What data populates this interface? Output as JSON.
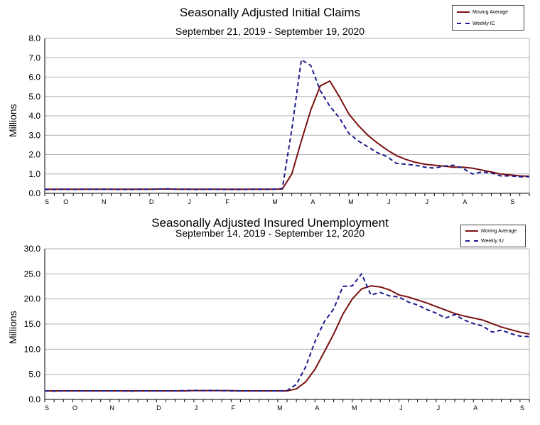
{
  "colors": {
    "moving_average": "#7a1010",
    "weekly": "#1a1a8c",
    "grid": "#b0b0b0",
    "axis": "#000000"
  },
  "chart_data": [
    {
      "type": "line",
      "title": "Seasonally Adjusted Initial Claims",
      "subtitle": "September 21, 2019 - September 19, 2020",
      "xlabel": "",
      "ylabel": "Millions",
      "ylim": [
        0,
        8
      ],
      "y_ticks": [
        "0.0",
        "1.0",
        "2.0",
        "3.0",
        "4.0",
        "5.0",
        "6.0",
        "7.0",
        "8.0"
      ],
      "x_ticks": [
        "S",
        "O",
        "N",
        "D",
        "J",
        "F",
        "M",
        "A",
        "M",
        "J",
        "J",
        "A",
        "S"
      ],
      "x_tick_weeks": [
        0,
        2,
        6,
        11,
        15,
        19,
        24,
        28,
        32,
        36,
        40,
        44,
        49
      ],
      "legend": [
        "Moving Average",
        "Weekly IC"
      ],
      "series": [
        {
          "name": "Moving Average",
          "style": "solid",
          "values": [
            0.21,
            0.21,
            0.21,
            0.21,
            0.21,
            0.21,
            0.21,
            0.21,
            0.21,
            0.21,
            0.21,
            0.21,
            0.22,
            0.22,
            0.21,
            0.21,
            0.21,
            0.21,
            0.21,
            0.21,
            0.21,
            0.21,
            0.21,
            0.21,
            0.21,
            0.22,
            1.0,
            2.7,
            4.3,
            5.55,
            5.8,
            5.0,
            4.1,
            3.5,
            3.0,
            2.6,
            2.25,
            1.95,
            1.75,
            1.6,
            1.5,
            1.45,
            1.4,
            1.35,
            1.35,
            1.3,
            1.2,
            1.1,
            1.0,
            0.95,
            0.9,
            0.88
          ]
        },
        {
          "name": "Weekly IC",
          "style": "dashed",
          "values": [
            0.2,
            0.2,
            0.21,
            0.2,
            0.21,
            0.21,
            0.21,
            0.21,
            0.2,
            0.2,
            0.21,
            0.21,
            0.22,
            0.23,
            0.21,
            0.21,
            0.2,
            0.21,
            0.21,
            0.2,
            0.2,
            0.2,
            0.21,
            0.21,
            0.21,
            0.25,
            3.3,
            6.9,
            6.6,
            5.3,
            4.5,
            3.9,
            3.1,
            2.7,
            2.4,
            2.1,
            1.9,
            1.55,
            1.5,
            1.45,
            1.35,
            1.3,
            1.4,
            1.45,
            1.3,
            1.0,
            1.1,
            1.05,
            0.9,
            0.9,
            0.85,
            0.86
          ]
        }
      ]
    },
    {
      "type": "line",
      "title": "Seasonally Adjusted Insured Unemployment",
      "subtitle": "September 14, 2019 - September 12, 2020",
      "xlabel": "",
      "ylabel": "Millions",
      "ylim": [
        0,
        30
      ],
      "y_ticks": [
        "0.0",
        "5.0",
        "10.0",
        "15.0",
        "20.0",
        "25.0",
        "30.0"
      ],
      "x_ticks": [
        "S",
        "O",
        "N",
        "D",
        "J",
        "F",
        "M",
        "A",
        "M",
        "J",
        "J",
        "A",
        "S"
      ],
      "x_tick_weeks": [
        0,
        3,
        7,
        12,
        16,
        20,
        25,
        29,
        33,
        38,
        42,
        46,
        51
      ],
      "legend": [
        "Moving Average",
        "Weekly IU"
      ],
      "series": [
        {
          "name": "Moving Average",
          "style": "solid",
          "values": [
            1.7,
            1.7,
            1.7,
            1.7,
            1.7,
            1.7,
            1.7,
            1.7,
            1.7,
            1.7,
            1.7,
            1.7,
            1.7,
            1.7,
            1.7,
            1.7,
            1.75,
            1.75,
            1.75,
            1.75,
            1.75,
            1.7,
            1.7,
            1.7,
            1.7,
            1.7,
            1.7,
            2.1,
            3.5,
            6.0,
            9.5,
            13.0,
            17.0,
            20.0,
            22.0,
            22.6,
            22.4,
            21.8,
            20.8,
            20.4,
            19.8,
            19.2,
            18.5,
            17.8,
            17.1,
            16.6,
            16.2,
            15.8,
            15.1,
            14.4,
            13.9,
            13.4,
            13.0
          ]
        },
        {
          "name": "Weekly IU",
          "style": "dashed",
          "values": [
            1.7,
            1.65,
            1.7,
            1.7,
            1.7,
            1.7,
            1.7,
            1.7,
            1.7,
            1.65,
            1.7,
            1.7,
            1.7,
            1.7,
            1.7,
            1.75,
            1.8,
            1.75,
            1.8,
            1.75,
            1.7,
            1.7,
            1.7,
            1.7,
            1.7,
            1.7,
            1.75,
            3.0,
            6.5,
            11.5,
            15.5,
            18.0,
            22.5,
            22.6,
            25.0,
            20.8,
            21.3,
            20.6,
            20.4,
            19.4,
            18.8,
            17.9,
            17.2,
            16.2,
            16.9,
            15.8,
            15.1,
            14.6,
            13.4,
            13.8,
            13.1,
            12.6,
            12.5
          ]
        }
      ]
    }
  ]
}
